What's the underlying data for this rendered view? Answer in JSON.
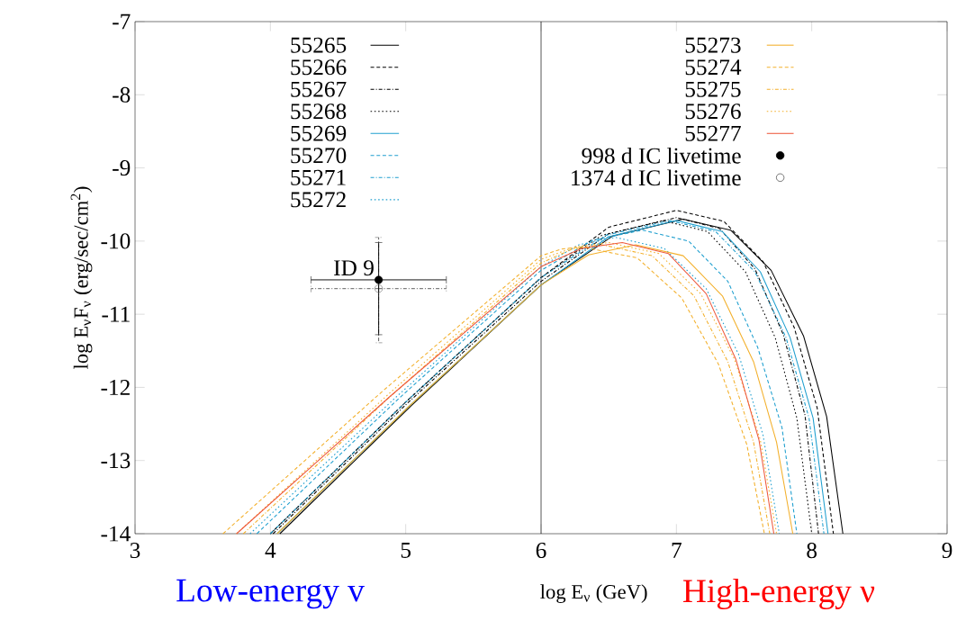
{
  "chart_data": {
    "type": "line",
    "xlabel": "log E$_{ν}$ (GeV)",
    "ylabel": "log E$_{ν}$F$_{ν}$ (erg/sec/cm$^{2}$)",
    "xlim": [
      3,
      9
    ],
    "ylim": [
      -14,
      -7
    ],
    "xticks": [
      3,
      4,
      5,
      6,
      7,
      8,
      9
    ],
    "yticks": [
      -14,
      -13,
      -12,
      -11,
      -10,
      -9,
      -8,
      -7
    ],
    "legend": "top",
    "grid": false,
    "ref_lines": [
      {
        "axis": "x",
        "value": 6,
        "color": "#000000"
      }
    ],
    "annotations": [
      {
        "text": "ID 9",
        "x": 4.8,
        "y": -10.53
      },
      "Low-energy v",
      "High-energy ν"
    ],
    "series": [
      {
        "name": "55265",
        "color": "#000000",
        "line_style": "solid",
        "x": [
          4.07,
          5.04,
          6,
          6.53,
          7.05,
          7.4,
          7.7,
          7.94,
          8.11,
          8.23
        ],
        "values": [
          -14,
          -12.25,
          -10.6,
          -9.93,
          -9.7,
          -9.85,
          -10.4,
          -11.3,
          -12.4,
          -14
        ]
      },
      {
        "name": "55266",
        "color": "#000000",
        "line_style": "dashed",
        "x": [
          4.0,
          5.0,
          6,
          6.5,
          7.0,
          7.35,
          7.64,
          7.87,
          8.04,
          8.16
        ],
        "values": [
          -14,
          -12.2,
          -10.5,
          -9.81,
          -9.58,
          -9.73,
          -10.28,
          -11.18,
          -12.28,
          -14
        ]
      },
      {
        "name": "55267",
        "color": "#000000",
        "line_style": "dashdot",
        "x": [
          4.02,
          5.01,
          6,
          6.5,
          7.0,
          7.32,
          7.58,
          7.79,
          7.95,
          8.05
        ],
        "values": [
          -14,
          -12.22,
          -10.55,
          -9.9,
          -9.68,
          -9.83,
          -10.38,
          -11.28,
          -12.38,
          -14
        ]
      },
      {
        "name": "55268",
        "color": "#000000",
        "line_style": "dotted",
        "x": [
          4.0,
          5.0,
          6,
          6.45,
          6.9,
          7.23,
          7.51,
          7.73,
          7.89,
          8.0
        ],
        "values": [
          -14,
          -12.2,
          -10.5,
          -9.92,
          -9.72,
          -9.87,
          -10.42,
          -11.32,
          -12.42,
          -14
        ]
      },
      {
        "name": "55269",
        "color": "#1f9fcf",
        "line_style": "solid",
        "x": [
          4.05,
          5.03,
          6,
          6.5,
          7.0,
          7.34,
          7.62,
          7.84,
          8.01,
          8.12
        ],
        "values": [
          -14,
          -12.25,
          -10.6,
          -9.94,
          -9.72,
          -9.87,
          -10.42,
          -11.32,
          -12.42,
          -14
        ]
      },
      {
        "name": "55270",
        "color": "#1f9fcf",
        "line_style": "dashed",
        "x": [
          3.9,
          4.95,
          6,
          6.38,
          6.75,
          7.09,
          7.38,
          7.6,
          7.78,
          7.89
        ],
        "values": [
          -14,
          -12.15,
          -10.4,
          -9.99,
          -9.85,
          -10.0,
          -10.55,
          -11.45,
          -12.55,
          -14
        ]
      },
      {
        "name": "55271",
        "color": "#1f9fcf",
        "line_style": "dashdot",
        "x": [
          4.0,
          5.0,
          6,
          6.48,
          6.95,
          7.29,
          7.58,
          7.81,
          7.98,
          8.09
        ],
        "values": [
          -14,
          -12.2,
          -10.5,
          -9.92,
          -9.72,
          -9.87,
          -10.42,
          -11.32,
          -12.42,
          -14
        ]
      },
      {
        "name": "55272",
        "color": "#1f9fcf",
        "line_style": "dotted",
        "x": [
          3.85,
          4.93,
          6,
          6.28,
          6.55,
          6.91,
          7.22,
          7.46,
          7.64,
          7.76
        ],
        "values": [
          -14,
          -12.13,
          -10.35,
          -10.05,
          -9.95,
          -10.1,
          -10.65,
          -11.55,
          -12.65,
          -14
        ]
      },
      {
        "name": "55273",
        "color": "#f3b02c",
        "line_style": "solid",
        "x": [
          4.05,
          5.03,
          6,
          6.35,
          6.7,
          7.05,
          7.34,
          7.57,
          7.74,
          7.86
        ],
        "values": [
          -14,
          -12.25,
          -10.6,
          -10.19,
          -10.05,
          -10.2,
          -10.75,
          -11.65,
          -12.75,
          -14
        ]
      },
      {
        "name": "55274",
        "color": "#f3b02c",
        "line_style": "dashed",
        "x": [
          3.65,
          4.83,
          6,
          6.15,
          6.3,
          6.71,
          7.04,
          7.31,
          7.52,
          7.65
        ],
        "values": [
          -14,
          -12.05,
          -10.2,
          -10.11,
          -10.08,
          -10.23,
          -10.78,
          -11.68,
          -12.78,
          -14
        ]
      },
      {
        "name": "55275",
        "color": "#f3b02c",
        "line_style": "dashdot",
        "x": [
          3.8,
          4.9,
          6,
          6.23,
          6.45,
          6.82,
          7.13,
          7.38,
          7.57,
          7.69
        ],
        "values": [
          -14,
          -12.1,
          -10.3,
          -10.11,
          -10.05,
          -10.2,
          -10.75,
          -11.65,
          -12.75,
          -14
        ]
      },
      {
        "name": "55276",
        "color": "#f3b02c",
        "line_style": "dotted",
        "x": [
          3.75,
          4.88,
          6,
          6.25,
          6.5,
          6.87,
          7.18,
          7.43,
          7.62,
          7.74
        ],
        "values": [
          -14,
          -12.08,
          -10.25,
          -10.08,
          -10.02,
          -10.17,
          -10.72,
          -11.62,
          -12.72,
          -14
        ]
      },
      {
        "name": "55277",
        "color": "#ee5a3e",
        "line_style": "solid",
        "x": [
          3.75,
          4.88,
          6,
          6.3,
          6.6,
          6.94,
          7.22,
          7.44,
          7.61,
          7.72
        ],
        "values": [
          -14,
          -12.13,
          -10.35,
          -10.1,
          -10.02,
          -10.17,
          -10.72,
          -11.62,
          -12.72,
          -14
        ]
      },
      {
        "name": "998 d IC livetime",
        "type": "scatter",
        "color": "#000000",
        "marker": "circle",
        "line_style": "solid",
        "x": [
          4.8
        ],
        "values": [
          -10.53
        ],
        "errors": [
          [
            -11.28,
            -10.02
          ]
        ],
        "xerrors": [
          [
            4.3,
            5.3
          ]
        ]
      },
      {
        "name": "1374 d IC livetime",
        "type": "scatter",
        "color": "#555555",
        "marker": "open circle",
        "line_style": "dashdot",
        "x": [
          4.8
        ],
        "values": [
          -10.65
        ],
        "errors": [
          [
            -11.39,
            -9.95
          ]
        ],
        "xerrors": [
          [
            4.3,
            5.3
          ]
        ]
      }
    ]
  }
}
